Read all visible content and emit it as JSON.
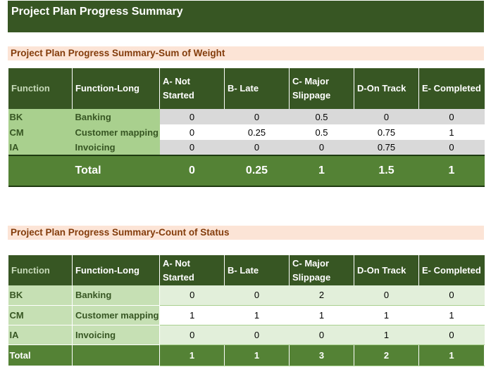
{
  "title": "Project Plan Progress Summary",
  "columns": {
    "function": "Function",
    "function_long": "Function-Long",
    "a": "A- Not Started",
    "b": "B- Late",
    "c": "C- Major Slippage",
    "d": "D-On Track",
    "e": "E- Completed"
  },
  "weight": {
    "heading": "Project Plan Progress Summary-Sum of Weight",
    "rows": [
      {
        "code": "BK",
        "name": "Banking",
        "a": "0",
        "b": "0",
        "c": "0.5",
        "d": "0",
        "e": "0"
      },
      {
        "code": "CM",
        "name": "Customer mapping",
        "a": "0",
        "b": "0.25",
        "c": "0.5",
        "d": "0.75",
        "e": "1"
      },
      {
        "code": "IA",
        "name": "Invoicing",
        "a": "0",
        "b": "0",
        "c": "0",
        "d": "0.75",
        "e": "0"
      }
    ],
    "total": {
      "label": "Total",
      "a": "0",
      "b": "0.25",
      "c": "1",
      "d": "1.5",
      "e": "1"
    }
  },
  "count": {
    "heading": "Project Plan Progress Summary-Count of Status",
    "rows": [
      {
        "code": "BK",
        "name": "Banking",
        "a": "0",
        "b": "0",
        "c": "2",
        "d": "0",
        "e": "0"
      },
      {
        "code": "CM",
        "name": "Customer mapping",
        "a": "1",
        "b": "1",
        "c": "1",
        "d": "1",
        "e": "1"
      },
      {
        "code": "IA",
        "name": "Invoicing",
        "a": "0",
        "b": "0",
        "c": "0",
        "d": "1",
        "e": "0"
      }
    ],
    "total": {
      "label": "Total",
      "a": "1",
      "b": "1",
      "c": "3",
      "d": "2",
      "e": "1"
    }
  }
}
